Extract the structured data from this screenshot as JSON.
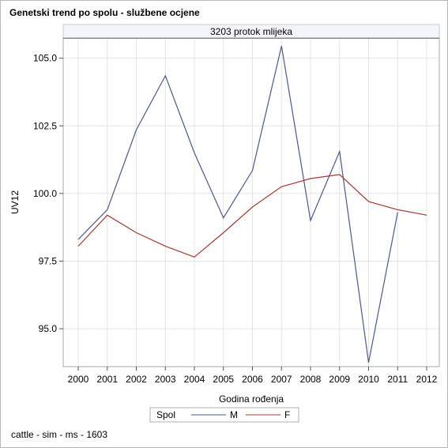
{
  "chart_data": {
    "type": "line",
    "title": "Genetski trend po spolu - službene ocjene",
    "panel_label": "3203 protok mlijeka",
    "xlabel": "Godina rođenja",
    "ylabel": "UV12",
    "x": [
      "2000",
      "2001",
      "2002",
      "2003",
      "2004",
      "2005",
      "2006",
      "2007",
      "2008",
      "2009",
      "2010",
      "2011",
      "2012"
    ],
    "y_ticks": [
      "95.0",
      "97.5",
      "100.0",
      "102.5",
      "105.0"
    ],
    "ylim": [
      93.6,
      105.75
    ],
    "grid": true,
    "legend": {
      "title": "Spol",
      "placement": "bottom-center"
    },
    "series": [
      {
        "name": "M",
        "color": "#4a5a8c",
        "values": [
          98.3,
          99.4,
          102.35,
          104.35,
          101.5,
          99.1,
          100.85,
          105.45,
          99.0,
          101.55,
          93.75,
          99.3,
          null
        ]
      },
      {
        "name": "F",
        "color": "#a23b32",
        "values": [
          98.05,
          99.2,
          98.55,
          98.05,
          97.65,
          98.55,
          99.5,
          100.25,
          100.55,
          100.7,
          99.7,
          99.4,
          99.2
        ]
      }
    ]
  },
  "footnote": "cattle - sim - ms - 1603"
}
